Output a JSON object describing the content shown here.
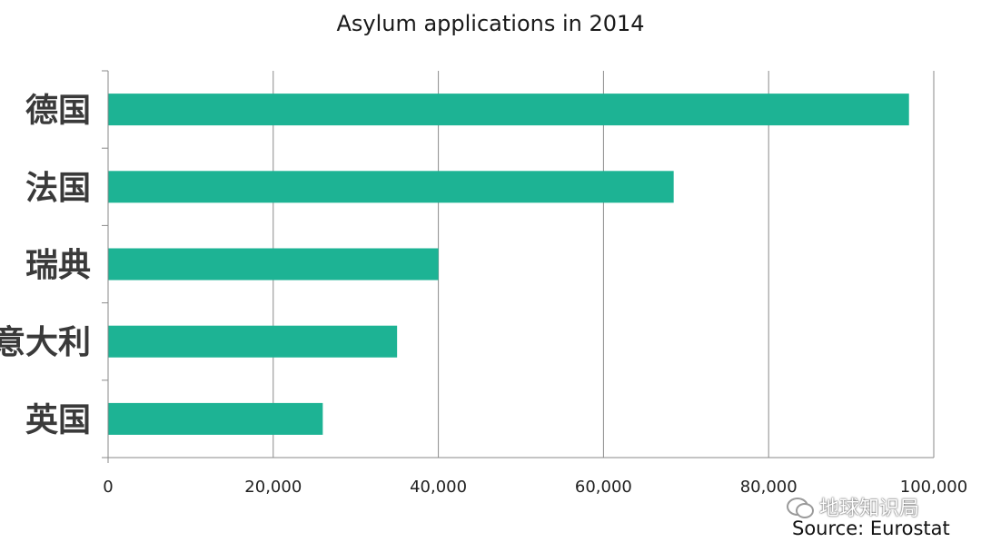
{
  "chart_data": {
    "type": "bar",
    "orientation": "horizontal",
    "title": "Asylum applications in 2014",
    "categories": [
      "德国",
      "法国",
      "瑞典",
      "意大利",
      "英国"
    ],
    "values": [
      97000,
      68500,
      40000,
      35000,
      26000
    ],
    "xlim": [
      0,
      100000
    ],
    "xticks": [
      "0",
      "20,000",
      "40,000",
      "60,000",
      "80,000",
      "100,000"
    ],
    "xtick_values": [
      0,
      20000,
      40000,
      60000,
      80000,
      100000
    ],
    "xlabel": "",
    "ylabel": "",
    "grid": true,
    "legend": "none",
    "bar_color": "#1db394",
    "grid_color": "#8a8a8a"
  },
  "source": "Source: Eurostat",
  "watermark": {
    "text": "地球知识局",
    "icon": "wechat-icon"
  }
}
